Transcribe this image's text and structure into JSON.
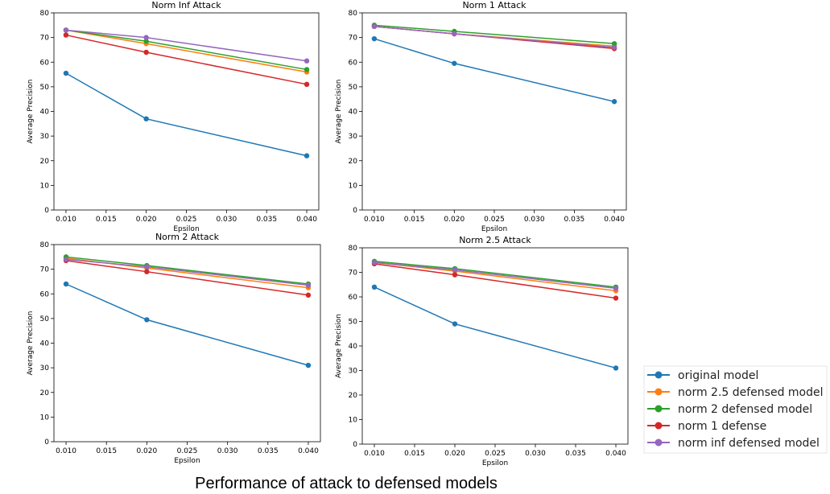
{
  "caption": "Performance of attack to defensed models",
  "colors": {
    "original model": "#1f77b4",
    "norm 2.5 defensed model": "#ff7f0e",
    "norm 2 defensed model": "#2ca02c",
    "norm 1 defense": "#d62728",
    "norm inf defensed model": "#9467bd"
  },
  "legend": [
    "original model",
    "norm 2.5 defensed model",
    "norm 2 defensed model",
    "norm 1 defense",
    "norm inf defensed model"
  ],
  "chart_data": [
    {
      "type": "line",
      "title": "Norm Inf Attack",
      "xlabel": "Epsilon",
      "ylabel": "Average Precision",
      "xlim": [
        0.0085,
        0.0415
      ],
      "ylim": [
        0,
        80
      ],
      "xticks": [
        0.01,
        0.015,
        0.02,
        0.025,
        0.03,
        0.035,
        0.04
      ],
      "xtick_labels": [
        "0.010",
        "0.015",
        "0.020",
        "0.025",
        "0.030",
        "0.035",
        "0.040"
      ],
      "yticks": [
        0,
        10,
        20,
        30,
        40,
        50,
        60,
        70,
        80
      ],
      "x": [
        0.01,
        0.02,
        0.04
      ],
      "series": [
        {
          "name": "original model",
          "values": [
            55.5,
            37.0,
            22.0
          ]
        },
        {
          "name": "norm 2.5 defensed model",
          "values": [
            73.0,
            67.5,
            56.0
          ]
        },
        {
          "name": "norm 2 defensed model",
          "values": [
            73.0,
            68.5,
            57.0
          ]
        },
        {
          "name": "norm 1 defense",
          "values": [
            71.0,
            64.0,
            51.0
          ]
        },
        {
          "name": "norm inf defensed model",
          "values": [
            73.0,
            70.0,
            60.5
          ]
        }
      ]
    },
    {
      "type": "line",
      "title": "Norm 1 Attack",
      "xlabel": "Epsilon",
      "ylabel": "Average Precision",
      "xlim": [
        0.0085,
        0.0415
      ],
      "ylim": [
        0,
        80
      ],
      "xticks": [
        0.01,
        0.015,
        0.02,
        0.025,
        0.03,
        0.035,
        0.04
      ],
      "xtick_labels": [
        "0.010",
        "0.015",
        "0.020",
        "0.025",
        "0.030",
        "0.035",
        "0.040"
      ],
      "yticks": [
        0,
        10,
        20,
        30,
        40,
        50,
        60,
        70,
        80
      ],
      "x": [
        0.01,
        0.02,
        0.04
      ],
      "series": [
        {
          "name": "original model",
          "values": [
            69.5,
            59.5,
            44.0
          ]
        },
        {
          "name": "norm 2.5 defensed model",
          "values": [
            74.5,
            71.5,
            66.5
          ]
        },
        {
          "name": "norm 2 defensed model",
          "values": [
            75.0,
            72.5,
            67.5
          ]
        },
        {
          "name": "norm 1 defense",
          "values": [
            74.5,
            71.5,
            65.5
          ]
        },
        {
          "name": "norm inf defensed model",
          "values": [
            74.5,
            71.5,
            66.0
          ]
        }
      ]
    },
    {
      "type": "line",
      "title": "Norm 2 Attack",
      "xlabel": "Epsilon",
      "ylabel": "Average Precision",
      "xlim": [
        0.0085,
        0.0415
      ],
      "ylim": [
        0,
        80
      ],
      "xticks": [
        0.01,
        0.015,
        0.02,
        0.025,
        0.03,
        0.035,
        0.04
      ],
      "xtick_labels": [
        "0.010",
        "0.015",
        "0.020",
        "0.025",
        "0.030",
        "0.035",
        "0.040"
      ],
      "yticks": [
        0,
        10,
        20,
        30,
        40,
        50,
        60,
        70,
        80
      ],
      "x": [
        0.01,
        0.02,
        0.04
      ],
      "series": [
        {
          "name": "original model",
          "values": [
            64.0,
            49.5,
            31.0
          ]
        },
        {
          "name": "norm 2.5 defensed model",
          "values": [
            74.5,
            70.5,
            62.5
          ]
        },
        {
          "name": "norm 2 defensed model",
          "values": [
            75.0,
            71.5,
            64.0
          ]
        },
        {
          "name": "norm 1 defense",
          "values": [
            73.5,
            69.0,
            59.5
          ]
        },
        {
          "name": "norm inf defensed model",
          "values": [
            74.0,
            71.0,
            63.5
          ]
        }
      ]
    },
    {
      "type": "line",
      "title": "Norm 2.5 Attack",
      "xlabel": "Epsilon",
      "ylabel": "Average Precision",
      "xlim": [
        0.0085,
        0.0415
      ],
      "ylim": [
        0,
        80
      ],
      "xticks": [
        0.01,
        0.015,
        0.02,
        0.025,
        0.03,
        0.035,
        0.04
      ],
      "xtick_labels": [
        "0.010",
        "0.015",
        "0.020",
        "0.025",
        "0.030",
        "0.035",
        "0.040"
      ],
      "yticks": [
        0,
        10,
        20,
        30,
        40,
        50,
        60,
        70,
        80
      ],
      "x": [
        0.01,
        0.02,
        0.04
      ],
      "series": [
        {
          "name": "original model",
          "values": [
            64.0,
            49.0,
            31.0
          ]
        },
        {
          "name": "norm 2.5 defensed model",
          "values": [
            74.0,
            70.5,
            62.5
          ]
        },
        {
          "name": "norm 2 defensed model",
          "values": [
            74.5,
            71.5,
            64.0
          ]
        },
        {
          "name": "norm 1 defense",
          "values": [
            73.5,
            69.0,
            59.5
          ]
        },
        {
          "name": "norm inf defensed model",
          "values": [
            74.0,
            71.0,
            63.5
          ]
        }
      ]
    }
  ]
}
